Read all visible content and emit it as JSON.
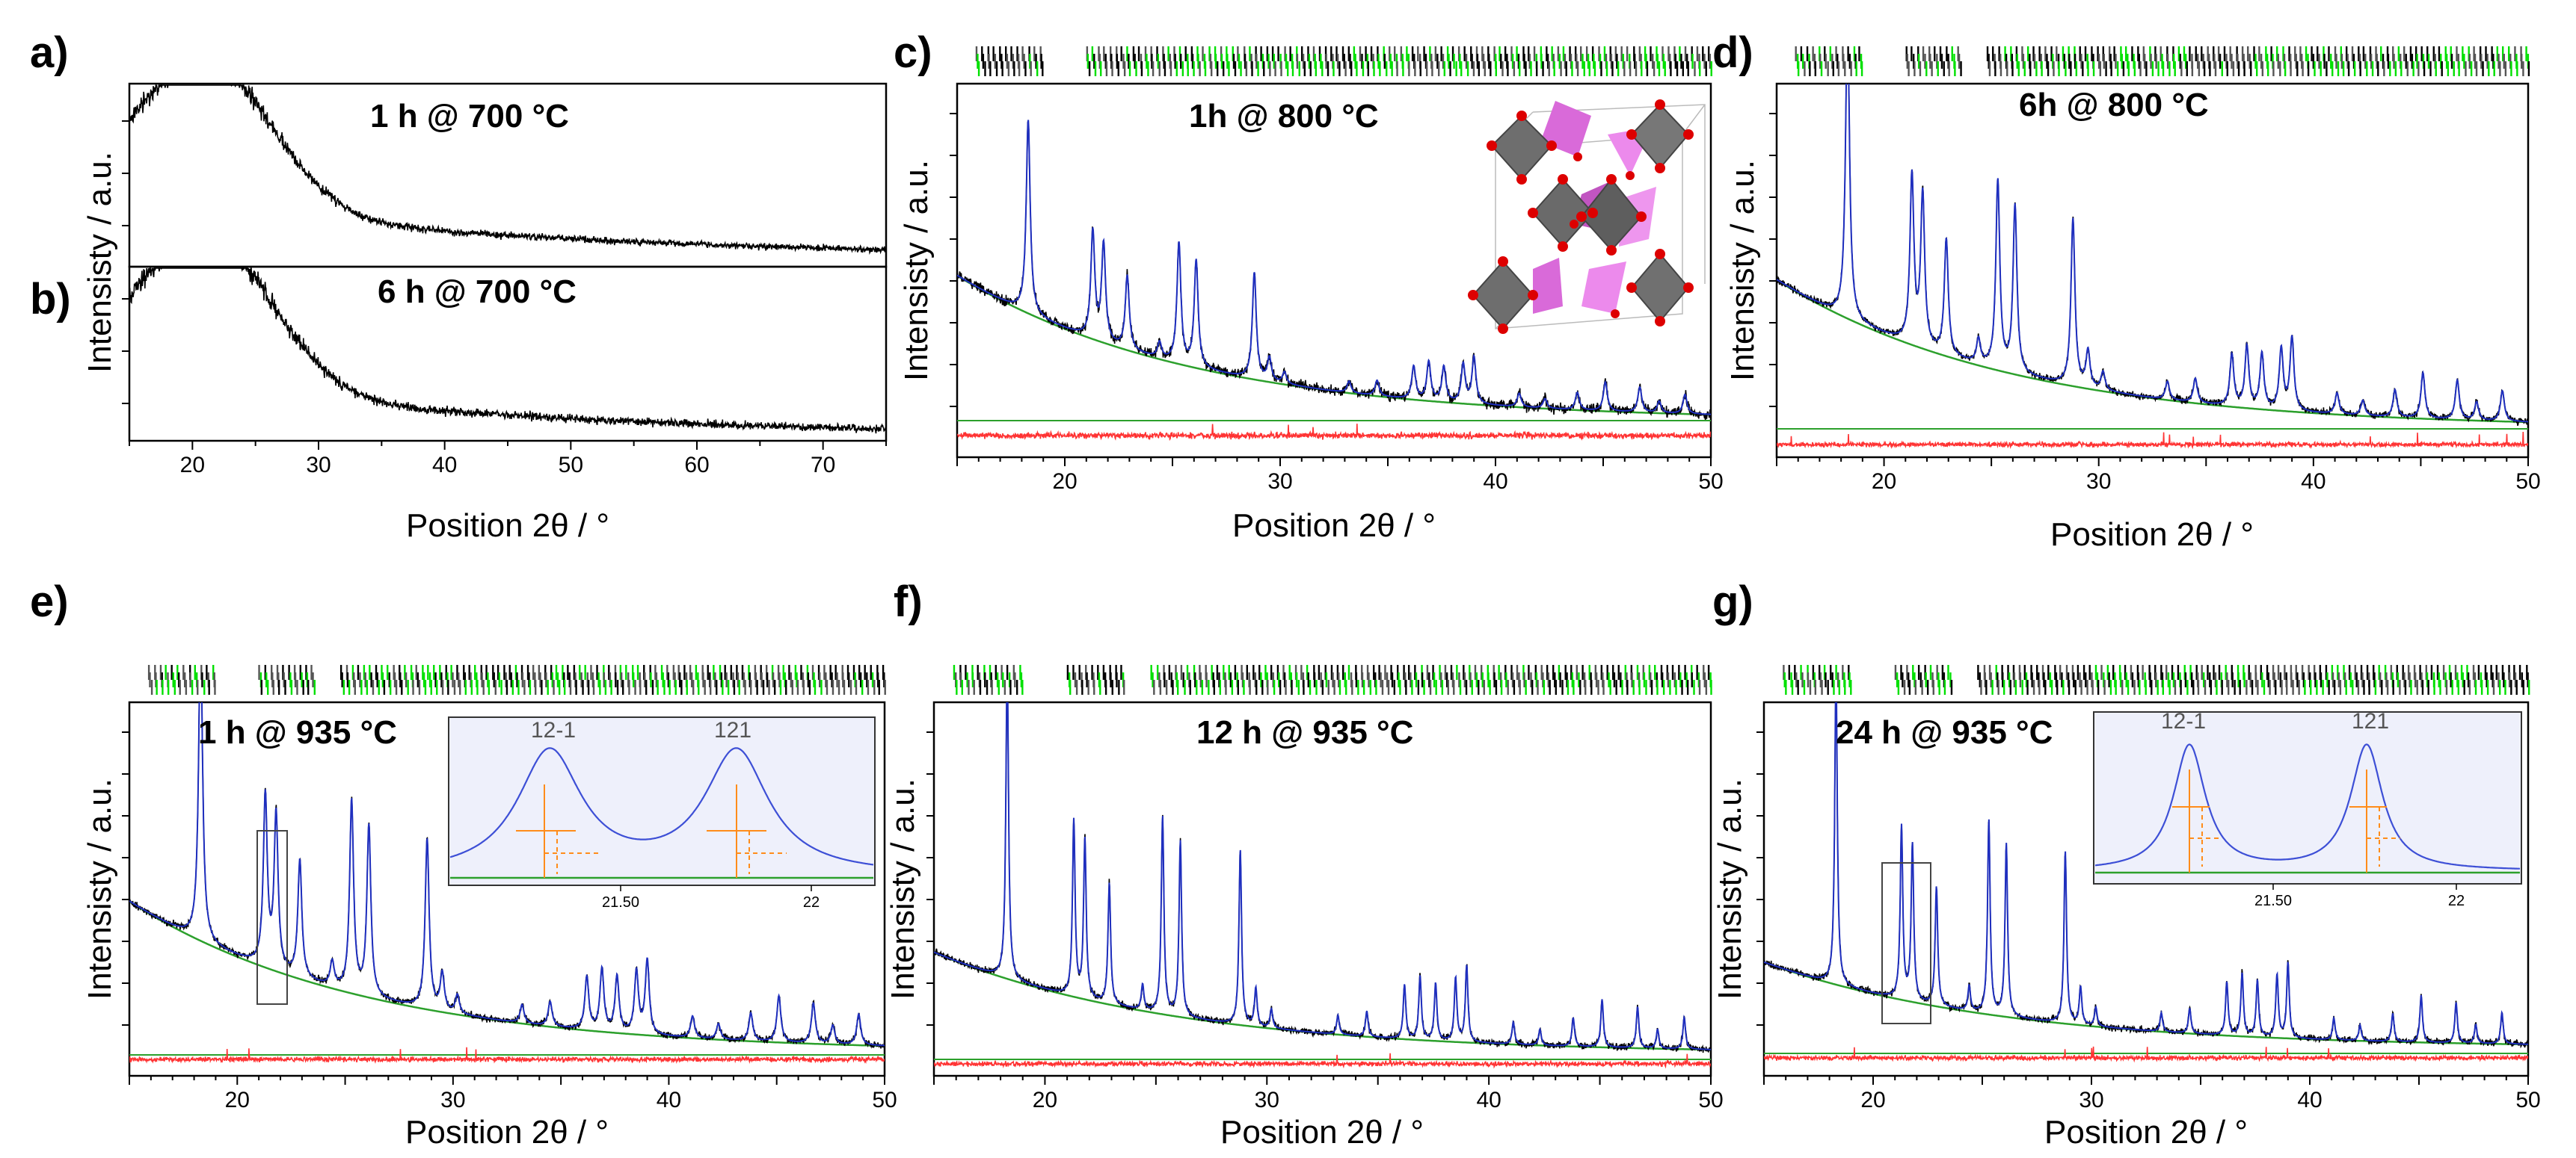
{
  "chart_data": [
    {
      "panel": "a)",
      "type": "line",
      "title": "1 h @ 700 °C",
      "xlabel": "Position 2θ / °",
      "ylabel": "Intensisty / a.u.",
      "xlim": [
        15,
        75
      ],
      "xticks": [],
      "shape": "amorphous_a",
      "series": [
        {
          "name": "observed",
          "color": "#000000"
        }
      ]
    },
    {
      "panel": "b)",
      "type": "line",
      "title": "6 h @ 700 °C",
      "xlabel": "Position 2θ / °",
      "ylabel": "Intensisty / a.u.",
      "xlim": [
        15,
        75
      ],
      "xticks": [
        20,
        30,
        40,
        50,
        60,
        70
      ],
      "shape": "amorphous_b",
      "series": [
        {
          "name": "observed",
          "color": "#000000"
        }
      ]
    },
    {
      "panel": "c)",
      "type": "line",
      "title": "1h @ 800 °C",
      "xlabel": "Position 2θ / °",
      "ylabel": "Intensisty / a.u.",
      "xlim": [
        15,
        50
      ],
      "xticks": [
        20,
        30,
        40,
        50
      ],
      "peakScale": 0.62,
      "bgStart": 0.42,
      "inset": "crystal-structure",
      "series": [
        {
          "name": "observed",
          "color": "#000000"
        },
        {
          "name": "calculated",
          "color": "#1f2fbf"
        },
        {
          "name": "background",
          "color": "#2ca02c"
        },
        {
          "name": "difference",
          "color": "#ff3333"
        }
      ]
    },
    {
      "panel": "d)",
      "type": "line",
      "title": "6h @ 800 °C",
      "xlabel": "Position 2θ / °",
      "ylabel": "Intensisty / a.u.",
      "xlim": [
        15,
        50
      ],
      "xticks": [
        20,
        30,
        40,
        50
      ],
      "peakScale": 0.95,
      "bgStart": 0.42,
      "series": [
        {
          "name": "observed",
          "color": "#000000"
        },
        {
          "name": "calculated",
          "color": "#1f2fbf"
        },
        {
          "name": "background",
          "color": "#2ca02c"
        },
        {
          "name": "difference",
          "color": "#ff3333"
        }
      ]
    },
    {
      "panel": "e)",
      "type": "line",
      "title": "1 h @ 935 °C",
      "xlabel": "Position 2θ / °",
      "ylabel": "Intensisty / a.u.",
      "xlim": [
        15,
        50
      ],
      "xticks": [
        20,
        30,
        40,
        50
      ],
      "peakScale": 0.95,
      "bgStart": 0.42,
      "series": [
        {
          "name": "observed",
          "color": "#000000"
        },
        {
          "name": "calculated",
          "color": "#1f2fbf"
        },
        {
          "name": "background",
          "color": "#2ca02c"
        },
        {
          "name": "difference",
          "color": "#ff3333"
        }
      ],
      "zoom": {
        "x_range": [
          21.0,
          22.5
        ],
        "inset_xticks": [
          21.5,
          22
        ],
        "inset_tick_labels": [
          "21.50",
          "22"
        ],
        "peaks": [
          "12-1",
          "121"
        ]
      }
    },
    {
      "panel": "f)",
      "type": "line",
      "title": "12 h @ 935 °C",
      "xlabel": "Position 2θ / °",
      "ylabel": "Intensisty / a.u.",
      "xlim": [
        15,
        50
      ],
      "xticks": [
        20,
        30,
        40,
        50
      ],
      "peakScale": 0.97,
      "bgStart": 0.28,
      "series": [
        {
          "name": "observed",
          "color": "#000000"
        },
        {
          "name": "calculated",
          "color": "#1f2fbf"
        },
        {
          "name": "background",
          "color": "#2ca02c"
        },
        {
          "name": "difference",
          "color": "#ff3333"
        }
      ]
    },
    {
      "panel": "g)",
      "type": "line",
      "title": "24 h @ 935 °C",
      "xlabel": "Position 2θ / °",
      "ylabel": "Intensisty / a.u.",
      "xlim": [
        15,
        50
      ],
      "xticks": [
        20,
        30,
        40,
        50
      ],
      "peakScale": 0.97,
      "bgStart": 0.24,
      "series": [
        {
          "name": "observed",
          "color": "#000000"
        },
        {
          "name": "calculated",
          "color": "#1f2fbf"
        },
        {
          "name": "background",
          "color": "#2ca02c"
        },
        {
          "name": "difference",
          "color": "#ff3333"
        }
      ],
      "zoom": {
        "x_range": [
          20.5,
          22.5
        ],
        "inset_xticks": [
          21.5,
          22
        ],
        "inset_tick_labels": [
          "21.50",
          "22"
        ],
        "peaks": [
          "12-1",
          "121"
        ]
      }
    }
  ],
  "reflections": [
    {
      "pos": 18.3,
      "rel": 1.0
    },
    {
      "pos": 21.3,
      "rel": 0.55
    },
    {
      "pos": 21.8,
      "rel": 0.5
    },
    {
      "pos": 22.9,
      "rel": 0.38
    },
    {
      "pos": 24.4,
      "rel": 0.08
    },
    {
      "pos": 25.3,
      "rel": 0.62
    },
    {
      "pos": 26.1,
      "rel": 0.55
    },
    {
      "pos": 28.8,
      "rel": 0.55
    },
    {
      "pos": 29.5,
      "rel": 0.12
    },
    {
      "pos": 30.2,
      "rel": 0.06
    },
    {
      "pos": 33.2,
      "rel": 0.06
    },
    {
      "pos": 34.5,
      "rel": 0.08
    },
    {
      "pos": 36.2,
      "rel": 0.17
    },
    {
      "pos": 36.9,
      "rel": 0.2
    },
    {
      "pos": 37.6,
      "rel": 0.18
    },
    {
      "pos": 38.5,
      "rel": 0.2
    },
    {
      "pos": 39.0,
      "rel": 0.24
    },
    {
      "pos": 41.1,
      "rel": 0.07
    },
    {
      "pos": 42.3,
      "rel": 0.05
    },
    {
      "pos": 43.8,
      "rel": 0.09
    },
    {
      "pos": 45.1,
      "rel": 0.15
    },
    {
      "pos": 46.7,
      "rel": 0.13
    },
    {
      "pos": 47.6,
      "rel": 0.06
    },
    {
      "pos": 48.8,
      "rel": 0.1
    }
  ],
  "colors": {
    "observed": "#000000",
    "calculated": "#1f2fbf",
    "background": "#2ca02c",
    "difference": "#ff3333",
    "green_marker": "#00e000",
    "inset_bg": "#eef0fb",
    "hkl_marker": "#ff8c1a",
    "octahedron": "#6e6e6e",
    "tetrahedron": "#e070e0",
    "oxygen": "#dd0000"
  }
}
